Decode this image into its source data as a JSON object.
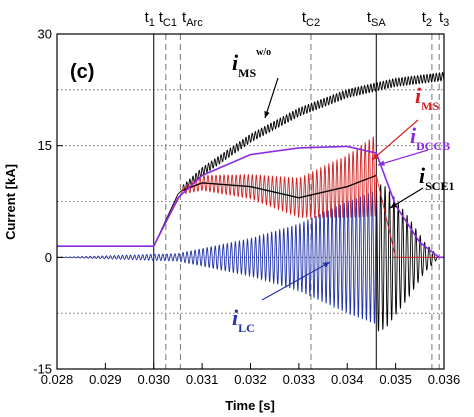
{
  "panel_label": "(c)",
  "chart_data": {
    "type": "line",
    "xlabel": "Time [s]",
    "ylabel": "Current [kA]",
    "xlim": [
      0.028,
      0.036
    ],
    "ylim": [
      -15,
      30
    ],
    "x_ticks": [
      "0.028",
      "0.029",
      "0.030",
      "0.031",
      "0.032",
      "0.033",
      "0.034",
      "0.035",
      "0.036"
    ],
    "y_ticks": [
      "-15",
      "0",
      "15",
      "30"
    ],
    "grid": "dotted horizontal at 7.5 kA steps",
    "markers": [
      {
        "base": "t",
        "sub": "1",
        "t": 0.03,
        "style": "solid"
      },
      {
        "base": "t",
        "sub": "C1",
        "t": 0.03025,
        "style": "dashed"
      },
      {
        "base": "t",
        "sub": "Arc",
        "t": 0.03055,
        "style": "dashed"
      },
      {
        "base": "t",
        "sub": "C2",
        "t": 0.03325,
        "style": "dashed"
      },
      {
        "base": "t",
        "sub": "SA",
        "t": 0.0346,
        "style": "solid"
      },
      {
        "base": "t",
        "sub": "2",
        "t": 0.03575,
        "style": "dashed"
      },
      {
        "base": "t",
        "sub": "3",
        "t": 0.0359,
        "style": "dashed"
      }
    ],
    "series": [
      {
        "name": "i_MS w/o",
        "base": "i",
        "sub": "MS",
        "sup": "w/o",
        "color": "#000000",
        "x": [
          0.028,
          0.03,
          0.0305,
          0.031,
          0.032,
          0.033,
          0.034,
          0.035,
          0.036
        ],
        "y": [
          1.5,
          1.5,
          8.5,
          11.5,
          16.0,
          19.5,
          22.0,
          23.5,
          24.3
        ],
        "oscillating": true
      },
      {
        "name": "i_MS",
        "base": "i",
        "sub": "MS",
        "color": "#d42020",
        "x": [
          0.028,
          0.03,
          0.0306,
          0.031,
          0.032,
          0.033,
          0.034,
          0.0346,
          0.035,
          0.036
        ],
        "y": [
          1.5,
          1.5,
          9.0,
          10.0,
          9.5,
          8.0,
          9.5,
          11.0,
          0.0,
          0.0
        ],
        "oscillating": true
      },
      {
        "name": "i_DCCB",
        "base": "i",
        "sub": "DCCB",
        "color": "#8a2be2",
        "x": [
          0.028,
          0.03,
          0.0305,
          0.031,
          0.032,
          0.033,
          0.034,
          0.0346,
          0.035,
          0.0355,
          0.0359
        ],
        "y": [
          1.5,
          1.5,
          8.0,
          11.0,
          13.8,
          14.7,
          14.9,
          14.0,
          7.0,
          2.0,
          0.0
        ],
        "oscillating": false
      },
      {
        "name": "i_LC",
        "base": "i",
        "sub": "LC",
        "color": "#2233aa",
        "x": [
          0.028,
          0.0305,
          0.032,
          0.033,
          0.034,
          0.0346
        ],
        "amplitude": [
          0.0,
          0.5,
          2.5,
          4.5,
          7.5,
          9.0
        ],
        "oscillating": true
      },
      {
        "name": "i_SCE1",
        "base": "i",
        "sub": "SCE1",
        "color": "#000000",
        "x": [
          0.0346,
          0.0348,
          0.0352,
          0.0356,
          0.0359
        ],
        "amplitude": [
          10.0,
          9.5,
          6.0,
          2.0,
          0.0
        ],
        "oscillating": true
      }
    ],
    "labels": [
      {
        "series": "i_MS w/o",
        "base": "i",
        "sub": "MS",
        "sup": "w/o",
        "color": "#000000"
      },
      {
        "series": "i_MS",
        "base": "i",
        "sub": "MS",
        "color": "#d42020"
      },
      {
        "series": "i_DCCB",
        "base": "i",
        "sub": "DCCB",
        "color": "#8a2be2"
      },
      {
        "series": "i_SCE1",
        "base": "i",
        "sub": "SCE1",
        "color": "#000000"
      },
      {
        "series": "i_LC",
        "base": "i",
        "sub": "LC",
        "color": "#2233aa"
      }
    ]
  }
}
